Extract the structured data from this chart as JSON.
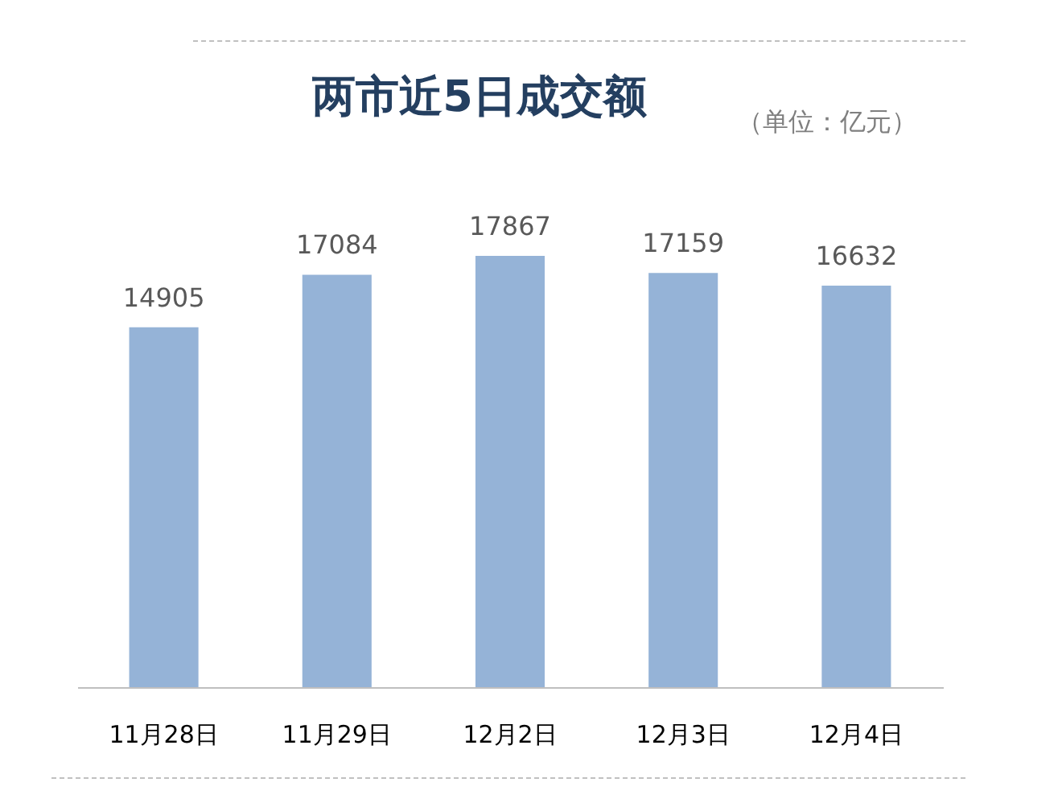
{
  "chart_data": {
    "type": "bar",
    "title": "两市近5日成交额",
    "subtitle": "（单位：亿元）",
    "categories": [
      "11月28日",
      "11月29日",
      "12月2日",
      "12月3日",
      "12月4日"
    ],
    "values": [
      14905,
      17084,
      17867,
      17159,
      16632
    ],
    "color": "#95b3d7",
    "data_labels": true,
    "tick_labels": "x"
  }
}
